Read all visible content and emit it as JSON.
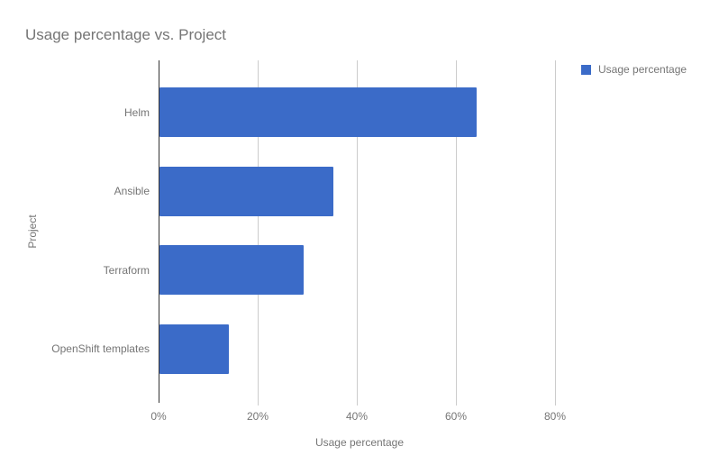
{
  "title": "Usage percentage vs. Project",
  "legend": {
    "position": "top-right",
    "items": [
      {
        "label": "Usage percentage",
        "color": "#3b6bc8"
      }
    ]
  },
  "axes": {
    "x": {
      "title": "Usage percentage",
      "tick_labels": [
        "0%",
        "20%",
        "40%",
        "60%",
        "80%"
      ],
      "tick_values": [
        0,
        20,
        40,
        60,
        80
      ]
    },
    "y": {
      "title": "Project"
    }
  },
  "colors": {
    "bar": "#3b6bc8",
    "grid": "#cccccc",
    "axis_line": "#333333",
    "text": "#757575",
    "background": "#ffffff"
  },
  "chart_data": {
    "type": "bar",
    "orientation": "horizontal",
    "title": "Usage percentage vs. Project",
    "xlabel": "Usage percentage",
    "ylabel": "Project",
    "categories": [
      "Helm",
      "Ansible",
      "Terraform",
      "OpenShift templates"
    ],
    "series": [
      {
        "name": "Usage percentage",
        "values": [
          64,
          35,
          29,
          14
        ]
      }
    ],
    "xlim": [
      0,
      81
    ],
    "xticks": [
      0,
      20,
      40,
      60,
      80
    ],
    "grid": true,
    "legend_position": "top-right",
    "bar_color": "#3b6bc8"
  }
}
